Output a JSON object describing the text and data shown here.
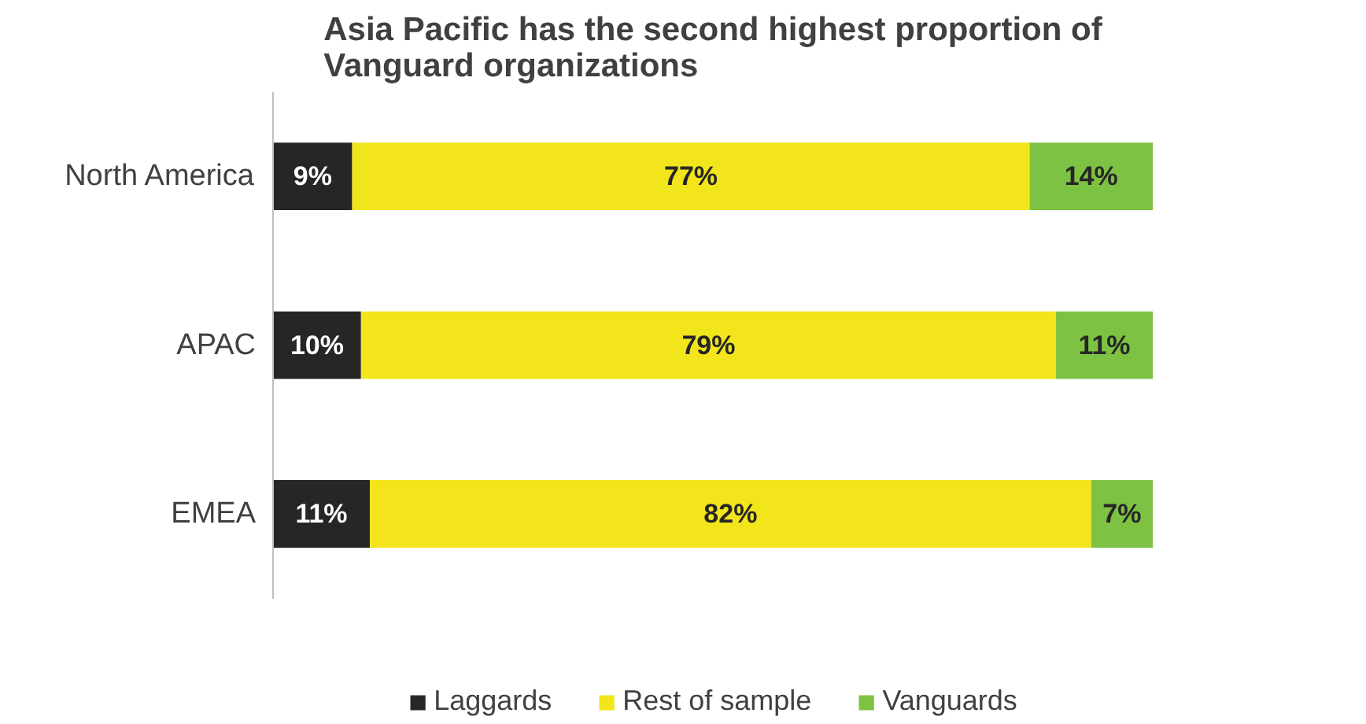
{
  "chart_data": {
    "type": "bar",
    "orientation": "horizontal",
    "stacked": true,
    "title": "Asia Pacific has the second highest proportion of Vanguard organizations",
    "categories": [
      "North America",
      "APAC",
      "EMEA"
    ],
    "series": [
      {
        "name": "Laggards",
        "color": "#262626",
        "values": [
          9,
          10,
          11
        ],
        "value_labels": [
          "9%",
          "10%",
          "11%"
        ]
      },
      {
        "name": "Rest of sample",
        "color": "#f2e51c",
        "values": [
          77,
          79,
          82
        ],
        "value_labels": [
          "77%",
          "79%",
          "82%"
        ]
      },
      {
        "name": "Vanguards",
        "color": "#7dc242",
        "values": [
          14,
          11,
          7
        ],
        "value_labels": [
          "14%",
          "11%",
          "7%"
        ]
      }
    ],
    "xlim": [
      0,
      100
    ],
    "tick_labels": "y",
    "grid": false,
    "legend": "bottom"
  }
}
